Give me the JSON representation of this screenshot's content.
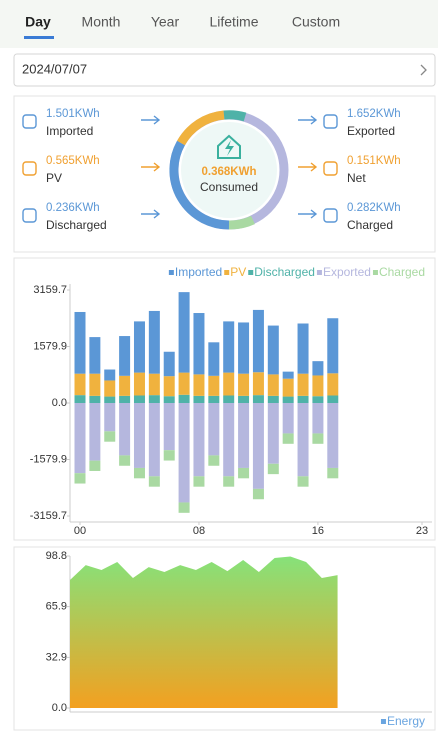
{
  "tabs": [
    "Day",
    "Month",
    "Year",
    "Lifetime",
    "Custom"
  ],
  "date": "2024/07/07",
  "flow": {
    "left": [
      {
        "value": "1.501KWh",
        "label": "Imported"
      },
      {
        "value": "0.565KWh",
        "label": "PV"
      },
      {
        "value": "0.236KWh",
        "label": "Discharged"
      }
    ],
    "center": {
      "value": "0.368KWh",
      "label": "Consumed"
    },
    "right": [
      {
        "value": "1.652KWh",
        "label": "Exported"
      },
      {
        "value": "0.151KWh",
        "label": "Net"
      },
      {
        "value": "0.282KWh",
        "label": "Charged"
      }
    ]
  },
  "chart_data": [
    {
      "type": "bar",
      "stacked": true,
      "x": [
        0,
        1,
        2,
        3,
        4,
        5,
        6,
        7,
        8,
        9,
        10,
        11,
        12,
        13,
        14,
        15,
        16,
        17
      ],
      "xlim": [
        0,
        23
      ],
      "xticks": [
        {
          "value": 0,
          "label": "00"
        },
        {
          "value": 8,
          "label": "08"
        },
        16,
        23
      ],
      "ylim": [
        -3159.7,
        3159.7
      ],
      "yticks": [
        3159.7,
        1579.9,
        {
          "value": 0,
          "label": "0.0"
        },
        -1579.9,
        -3159.7
      ],
      "legend": "top-right",
      "series": [
        {
          "name": "Imported",
          "color": "#5b97d6",
          "values": [
            1725,
            1023,
            306,
            1112,
            1432,
            1754,
            683,
            2250,
            1716,
            937,
            1432,
            1432,
            1743,
            1365,
            197,
            1403,
            400,
            1540
          ]
        },
        {
          "name": "PV",
          "color": "#f0b23e",
          "values": [
            600,
            620,
            450,
            560,
            640,
            600,
            560,
            620,
            600,
            560,
            640,
            620,
            640,
            600,
            500,
            620,
            580,
            620
          ]
        },
        {
          "name": "Discharged",
          "color": "#4fb2a8",
          "values": [
            220,
            200,
            180,
            200,
            210,
            220,
            190,
            230,
            200,
            200,
            210,
            200,
            220,
            200,
            180,
            200,
            190,
            210
          ]
        },
        {
          "name": "Exported",
          "color": "#b5b7de",
          "values": [
            -1962,
            -1611,
            -792,
            -1465,
            -1816,
            -2050,
            -1319,
            -2781,
            -2050,
            -1465,
            -2050,
            -1816,
            -2401,
            -1699,
            -851,
            -2050,
            -851,
            -1816
          ]
        },
        {
          "name": "Charged",
          "color": "#a9d9a2",
          "values": [
            -290,
            -290,
            -290,
            -290,
            -290,
            -290,
            -290,
            -290,
            -290,
            -290,
            -290,
            -290,
            -290,
            -290,
            -290,
            -290,
            -290,
            -290
          ]
        }
      ]
    },
    {
      "type": "area",
      "x": [
        0,
        1,
        2,
        3,
        4,
        5,
        6,
        7,
        8,
        9,
        10,
        11,
        12,
        13,
        14,
        15,
        16,
        17
      ],
      "xlim": [
        0,
        23
      ],
      "ylim": [
        0,
        98.8
      ],
      "yticks": [
        {
          "value": 0,
          "label": "0.0"
        },
        32.9,
        65.9,
        98.8
      ],
      "legend": "bottom-right",
      "series": [
        {
          "name": "Energy",
          "color": "#6aa5e0",
          "fill_colors": [
            "#86e27a",
            "#f3a020"
          ],
          "values": [
            83.2,
            92.9,
            89.7,
            94.9,
            84.5,
            91.6,
            88.4,
            92.9,
            89.7,
            94.9,
            89.0,
            96.2,
            88.4,
            97.5,
            98.5,
            94.9,
            84.5,
            86.4
          ]
        }
      ]
    }
  ]
}
